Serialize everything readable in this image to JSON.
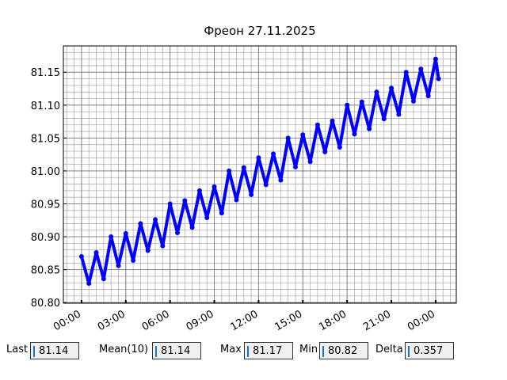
{
  "chart_data": {
    "type": "line",
    "title": "Фреон 27.11.2025",
    "x": [
      0,
      0.5,
      1,
      1.5,
      2,
      2.5,
      3,
      3.5,
      4,
      4.5,
      5,
      5.5,
      6,
      6.5,
      7,
      7.5,
      8,
      8.5,
      9,
      9.5,
      10,
      10.5,
      11,
      11.5,
      12,
      12.5,
      13,
      13.5,
      14,
      14.5,
      15,
      15.5,
      16,
      16.5,
      17,
      17.5,
      18,
      18.5,
      19,
      19.5,
      20,
      20.5,
      21,
      21.5,
      22,
      22.5,
      23,
      23.5,
      24,
      24.2
    ],
    "series": [
      {
        "color": "#0000ff",
        "values": [
          80.87,
          80.829,
          80.876,
          80.836,
          80.9,
          80.856,
          80.905,
          80.864,
          80.92,
          80.879,
          80.926,
          80.886,
          80.95,
          80.906,
          80.955,
          80.914,
          80.97,
          80.929,
          80.976,
          80.936,
          81.0,
          80.956,
          81.005,
          80.964,
          81.02,
          80.979,
          81.026,
          80.986,
          81.05,
          81.006,
          81.055,
          81.014,
          81.07,
          81.029,
          81.076,
          81.036,
          81.1,
          81.056,
          81.105,
          81.064,
          81.12,
          81.079,
          81.126,
          81.086,
          81.15,
          81.106,
          81.155,
          81.114,
          81.17,
          81.14
        ]
      }
    ],
    "xlim": [
      -1.23,
      25.4
    ],
    "xticks": [
      {
        "value": 0,
        "label": "00:00"
      },
      {
        "value": 3,
        "label": "03:00"
      },
      {
        "value": 6,
        "label": "06:00"
      },
      {
        "value": 9,
        "label": "09:00"
      },
      {
        "value": 12,
        "label": "12:00"
      },
      {
        "value": 15,
        "label": "15:00"
      },
      {
        "value": 18,
        "label": "18:00"
      },
      {
        "value": 21,
        "label": "21:00"
      },
      {
        "value": 24,
        "label": "00:00"
      }
    ],
    "ylim": [
      80.799,
      81.19
    ],
    "yticks": [
      {
        "value": 80.8,
        "label": "80.80"
      },
      80.85,
      {
        "value": 80.9,
        "label": "80.90"
      },
      80.95,
      {
        "value": 81.0,
        "label": "81.00"
      },
      81.05,
      {
        "value": 81.1,
        "label": "81.10"
      },
      81.15
    ],
    "grid": true,
    "minor_grid": true
  },
  "stats": [
    {
      "label": "Last",
      "value": "81.14"
    },
    {
      "label": "Mean(10)",
      "value": "81.14"
    },
    {
      "label": "Max",
      "value": "81.17"
    },
    {
      "label": "Min",
      "value": "80.82"
    },
    {
      "label": "Delta",
      "value": "0.357"
    }
  ]
}
